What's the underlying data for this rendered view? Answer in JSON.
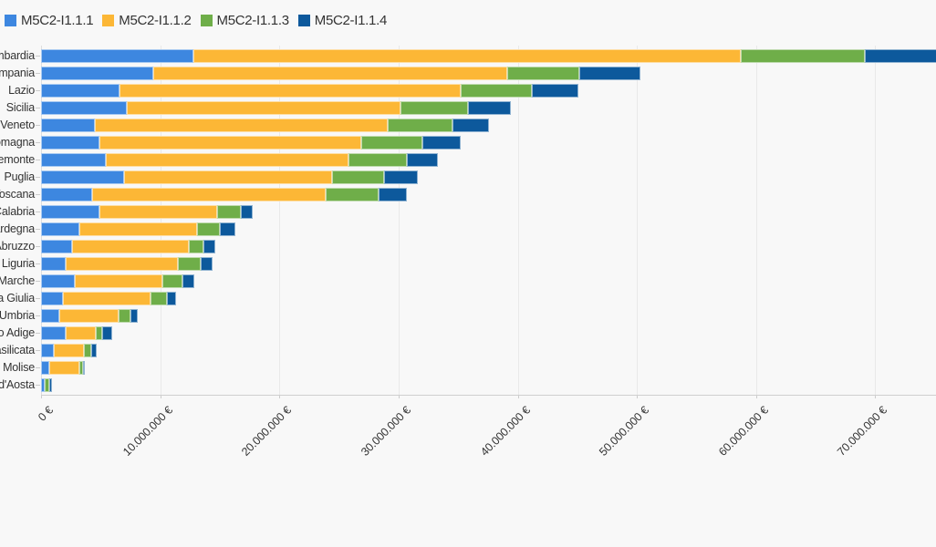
{
  "legend": {
    "position": "top-left",
    "items": [
      {
        "label": "M5C2-I1.1.1",
        "color": "#3d87e0"
      },
      {
        "label": "M5C2-I1.1.2",
        "color": "#fcb736"
      },
      {
        "label": "M5C2-I1.1.3",
        "color": "#6fae49"
      },
      {
        "label": "M5C2-I1.1.4",
        "color": "#0d599c"
      }
    ]
  },
  "colors": {
    "background": "#f8f8f8",
    "gridline": "#e9e9e9",
    "axis_line": "#dedede",
    "baseline": "#cfcfcf",
    "text": "#333333"
  },
  "chart_data": {
    "type": "bar",
    "orientation": "horizontal",
    "stacked": true,
    "grid": "vertical",
    "legend_position": "top-left",
    "title": "",
    "xlabel": "",
    "ylabel": "",
    "categories": [
      "Lombardia",
      "Campania",
      "Lazio",
      "Sicilia",
      "Veneto",
      "Emilia-Romagna",
      "Piemonte",
      "Puglia",
      "Toscana",
      "Calabria",
      "Sardegna",
      "Abruzzo",
      "Liguria",
      "Marche",
      "Friuli-Venezia Giulia",
      "Umbria",
      "Trentino-Alto Adige",
      "Basilicata",
      "Molise",
      "Valle d'Aosta"
    ],
    "categories_note": "labels are right-aligned and clipped at the left viewport edge",
    "series": [
      {
        "name": "M5C2-I1.1.1",
        "color": "#3d87e0",
        "values": [
          12800000,
          9400000,
          6600000,
          7200000,
          4500000,
          4900000,
          5400000,
          7000000,
          4300000,
          4900000,
          3200000,
          2600000,
          2100000,
          2800000,
          1800000,
          1500000,
          2100000,
          1100000,
          700000,
          300000
        ]
      },
      {
        "name": "M5C2-I1.1.2",
        "color": "#fcb736",
        "values": [
          45900000,
          29700000,
          28600000,
          23000000,
          24600000,
          22000000,
          20400000,
          17400000,
          19600000,
          9900000,
          9900000,
          9800000,
          9400000,
          7400000,
          7400000,
          5000000,
          2500000,
          2500000,
          2500000,
          0
        ]
      },
      {
        "name": "M5C2-I1.1.3",
        "color": "#6fae49",
        "values": [
          10400000,
          6100000,
          6000000,
          5600000,
          5400000,
          5100000,
          4900000,
          4400000,
          4400000,
          2000000,
          1900000,
          1200000,
          1900000,
          1700000,
          1400000,
          1000000,
          500000,
          600000,
          300000,
          400000
        ]
      },
      {
        "name": "M5C2-I1.1.4",
        "color": "#0d599c",
        "values": [
          8000000,
          5100000,
          3900000,
          3600000,
          3100000,
          3200000,
          2600000,
          2800000,
          2400000,
          1000000,
          1300000,
          1000000,
          1000000,
          1000000,
          700000,
          600000,
          900000,
          500000,
          200000,
          200000
        ]
      }
    ],
    "x_axis": {
      "unit": "EUR",
      "visible_max": 75100000,
      "first_bar_clipped_at_right_edge": true,
      "ticks": [
        {
          "value": 0,
          "label": "0 €"
        },
        {
          "value": 10000000,
          "label": "10.000.000 €"
        },
        {
          "value": 20000000,
          "label": "20.000.000 €"
        },
        {
          "value": 30000000,
          "label": "30.000.000 €"
        },
        {
          "value": 40000000,
          "label": "40.000.000 €"
        },
        {
          "value": 50000000,
          "label": "50.000.000 €"
        },
        {
          "value": 60000000,
          "label": "60.000.000 €"
        },
        {
          "value": 70000000,
          "label": "70.000.000 €"
        }
      ]
    }
  }
}
